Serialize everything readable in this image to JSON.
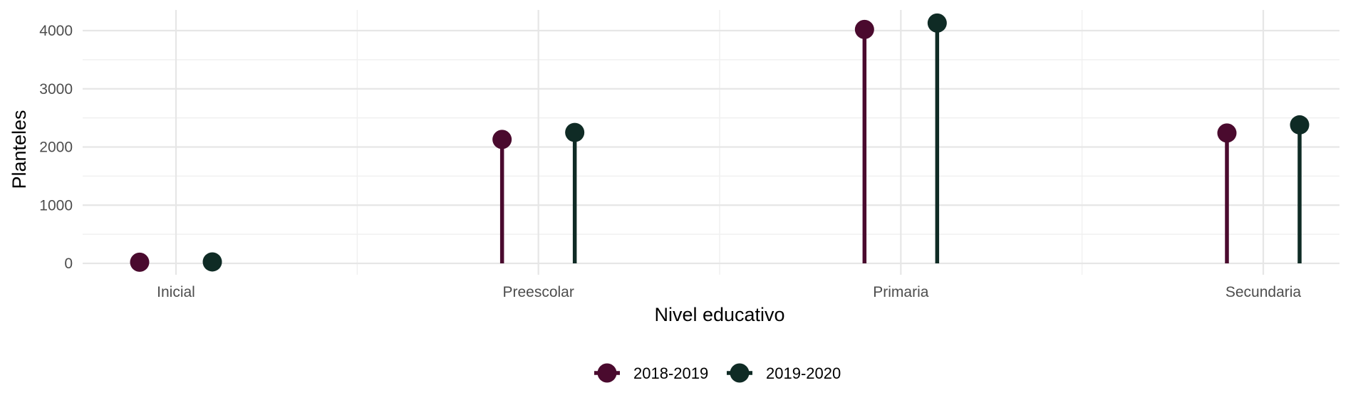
{
  "chart_data": {
    "type": "lollipop",
    "categories": [
      "Inicial",
      "Preescolar",
      "Primaria",
      "Secundaria"
    ],
    "series": [
      {
        "name": "2018-2019",
        "color": "#4a0a2e",
        "values": [
          20,
          2130,
          4020,
          2240
        ]
      },
      {
        "name": "2019-2020",
        "color": "#0f2b25",
        "values": [
          25,
          2250,
          4130,
          2380
        ]
      }
    ],
    "xlabel": "Nivel educativo",
    "ylabel": "Planteles",
    "yticks": [
      0,
      1000,
      2000,
      3000,
      4000
    ],
    "ylim": [
      -200,
      4300
    ],
    "grid": true,
    "legend_position": "bottom"
  }
}
